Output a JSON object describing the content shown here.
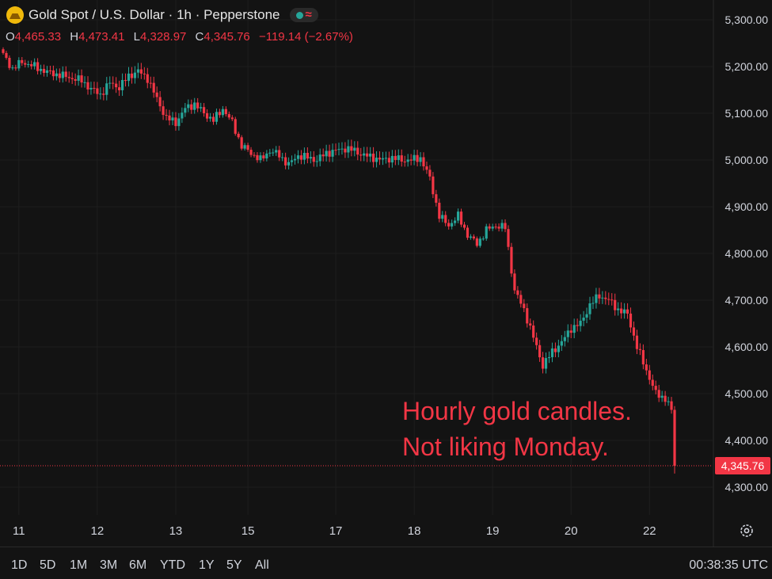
{
  "header": {
    "title": "Gold Spot / U.S. Dollar · 1h · Pepperstone",
    "approx_glyph": "≈",
    "ohlc": [
      {
        "key": "O",
        "value": "4,465.33"
      },
      {
        "key": "H",
        "value": "4,473.41"
      },
      {
        "key": "L",
        "value": "4,328.97"
      },
      {
        "key": "C",
        "value": "4,345.76"
      }
    ],
    "change": "−119.14 (−2.67%)"
  },
  "annotation": {
    "line1": "Hourly gold candles.",
    "line2": "Not liking Monday."
  },
  "toolbar": {
    "ranges": [
      "1D",
      "5D",
      "1M",
      "3M",
      "6M",
      "YTD",
      "1Y",
      "5Y",
      "All"
    ],
    "clock": "00:38:35 UTC"
  },
  "icons": {
    "logo": "gold-coin-icon",
    "settings": "gear-icon",
    "market_status": "status-dot-icon"
  },
  "colors": {
    "background": "#131313",
    "up": "#26a69a",
    "down": "#f23645",
    "grid": "#1e1e1e",
    "text": "#d1d4dc"
  },
  "chart_data": {
    "type": "candlestick",
    "ylim": [
      4260,
      5340
    ],
    "y_ticks": [
      "5,300.00",
      "5,200.00",
      "5,100.00",
      "5,000.00",
      "4,900.00",
      "4,800.00",
      "4,700.00",
      "4,600.00",
      "4,500.00",
      "4,400.00",
      "4,300.00"
    ],
    "y_tick_values": [
      5300,
      5200,
      5100,
      5000,
      4900,
      4800,
      4700,
      4600,
      4500,
      4400,
      4300
    ],
    "x_ticks": [
      "11",
      "12",
      "13",
      "15",
      "17",
      "18",
      "19",
      "20",
      "22"
    ],
    "x_tick_candle_index": [
      5,
      30,
      55,
      78,
      106,
      131,
      156,
      181,
      206
    ],
    "last_price": 4345.76,
    "last_price_label": "4,345.76",
    "close_path": [
      [
        0,
        5225
      ],
      [
        3,
        5195
      ],
      [
        6,
        5210
      ],
      [
        10,
        5200
      ],
      [
        14,
        5188
      ],
      [
        18,
        5182
      ],
      [
        22,
        5175
      ],
      [
        25,
        5170
      ],
      [
        28,
        5152
      ],
      [
        31,
        5140
      ],
      [
        34,
        5165
      ],
      [
        37,
        5155
      ],
      [
        40,
        5180
      ],
      [
        43,
        5190
      ],
      [
        46,
        5175
      ],
      [
        49,
        5130
      ],
      [
        52,
        5090
      ],
      [
        55,
        5080
      ],
      [
        58,
        5110
      ],
      [
        61,
        5120
      ],
      [
        64,
        5100
      ],
      [
        67,
        5085
      ],
      [
        70,
        5110
      ],
      [
        73,
        5080
      ],
      [
        76,
        5030
      ],
      [
        79,
        5015
      ],
      [
        82,
        5000
      ],
      [
        85,
        5020
      ],
      [
        88,
        5010
      ],
      [
        91,
        4990
      ],
      [
        94,
        5010
      ],
      [
        97,
        5005
      ],
      [
        100,
        5000
      ],
      [
        103,
        5015
      ],
      [
        106,
        5020
      ],
      [
        109,
        5025
      ],
      [
        112,
        5020
      ],
      [
        115,
        5010
      ],
      [
        118,
        5005
      ],
      [
        121,
        5000
      ],
      [
        124,
        5005
      ],
      [
        127,
        5000
      ],
      [
        130,
        5000
      ],
      [
        133,
        5005
      ],
      [
        136,
        4960
      ],
      [
        139,
        4880
      ],
      [
        142,
        4860
      ],
      [
        145,
        4880
      ],
      [
        148,
        4840
      ],
      [
        151,
        4820
      ],
      [
        154,
        4850
      ],
      [
        157,
        4860
      ],
      [
        160,
        4855
      ],
      [
        163,
        4720
      ],
      [
        166,
        4680
      ],
      [
        169,
        4620
      ],
      [
        172,
        4560
      ],
      [
        175,
        4590
      ],
      [
        178,
        4610
      ],
      [
        181,
        4640
      ],
      [
        184,
        4650
      ],
      [
        187,
        4690
      ],
      [
        190,
        4710
      ],
      [
        193,
        4700
      ],
      [
        196,
        4680
      ],
      [
        199,
        4670
      ],
      [
        202,
        4600
      ],
      [
        205,
        4550
      ],
      [
        208,
        4500
      ],
      [
        211,
        4490
      ],
      [
        213,
        4465
      ],
      [
        214,
        4345.76
      ]
    ]
  }
}
